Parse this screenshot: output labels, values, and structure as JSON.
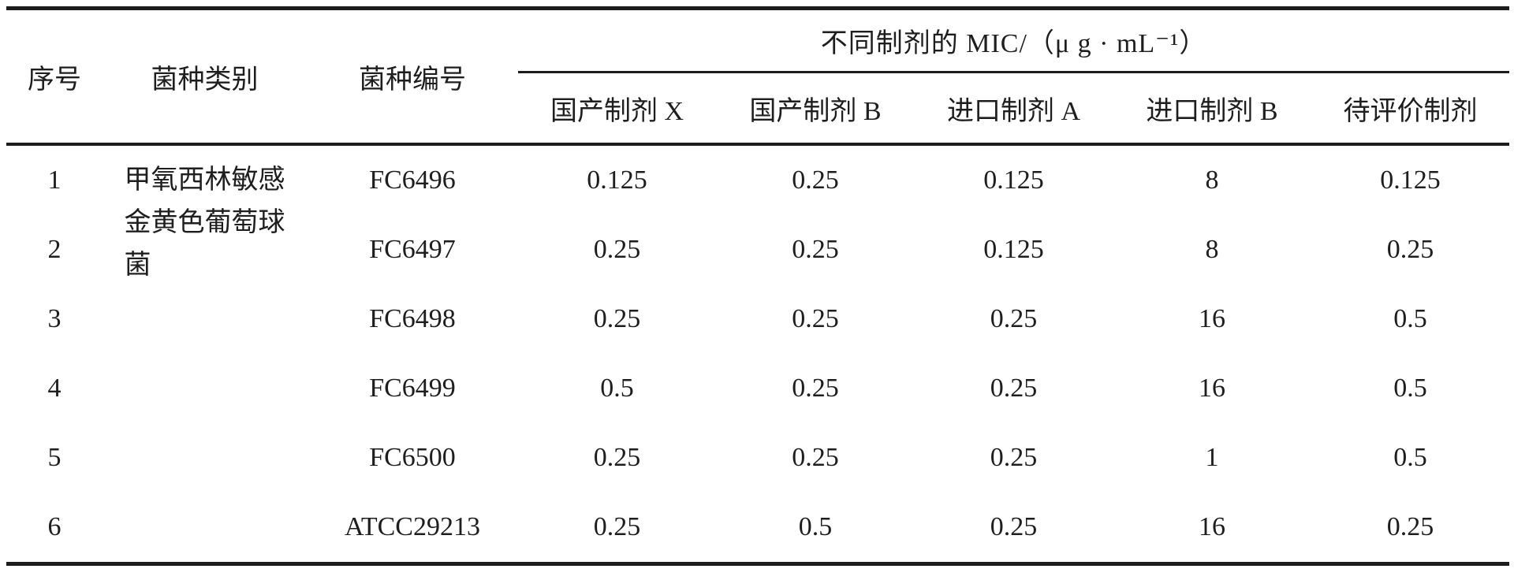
{
  "table": {
    "columns": {
      "serial": "序号",
      "category": "菌种类别",
      "strain_id": "菌种编号"
    },
    "mic_group_header": "不同制剂的 MIC/（μ g · mL⁻¹）",
    "mic_columns": [
      "国产制剂 X",
      "国产制剂 B",
      "进口制剂 A",
      "进口制剂 B",
      "待评价制剂"
    ],
    "category_value": "甲氧西林敏感金黄色葡萄球菌",
    "rows": [
      {
        "serial": "1",
        "strain_id": "FC6496",
        "mic_values": [
          "0.125",
          "0.25",
          "0.125",
          "8",
          "0.125"
        ]
      },
      {
        "serial": "2",
        "strain_id": "FC6497",
        "mic_values": [
          "0.25",
          "0.25",
          "0.125",
          "8",
          "0.25"
        ]
      },
      {
        "serial": "3",
        "strain_id": "FC6498",
        "mic_values": [
          "0.25",
          "0.25",
          "0.25",
          "16",
          "0.5"
        ]
      },
      {
        "serial": "4",
        "strain_id": "FC6499",
        "mic_values": [
          "0.5",
          "0.25",
          "0.25",
          "16",
          "0.5"
        ]
      },
      {
        "serial": "5",
        "strain_id": "FC6500",
        "mic_values": [
          "0.25",
          "0.25",
          "0.25",
          "1",
          "0.5"
        ]
      },
      {
        "serial": "6",
        "strain_id": "ATCC29213",
        "mic_values": [
          "0.25",
          "0.5",
          "0.25",
          "16",
          "0.25"
        ]
      }
    ],
    "colors": {
      "text": "#1e1e1e",
      "rule": "#1c1c1c",
      "background": "#ffffff"
    }
  }
}
